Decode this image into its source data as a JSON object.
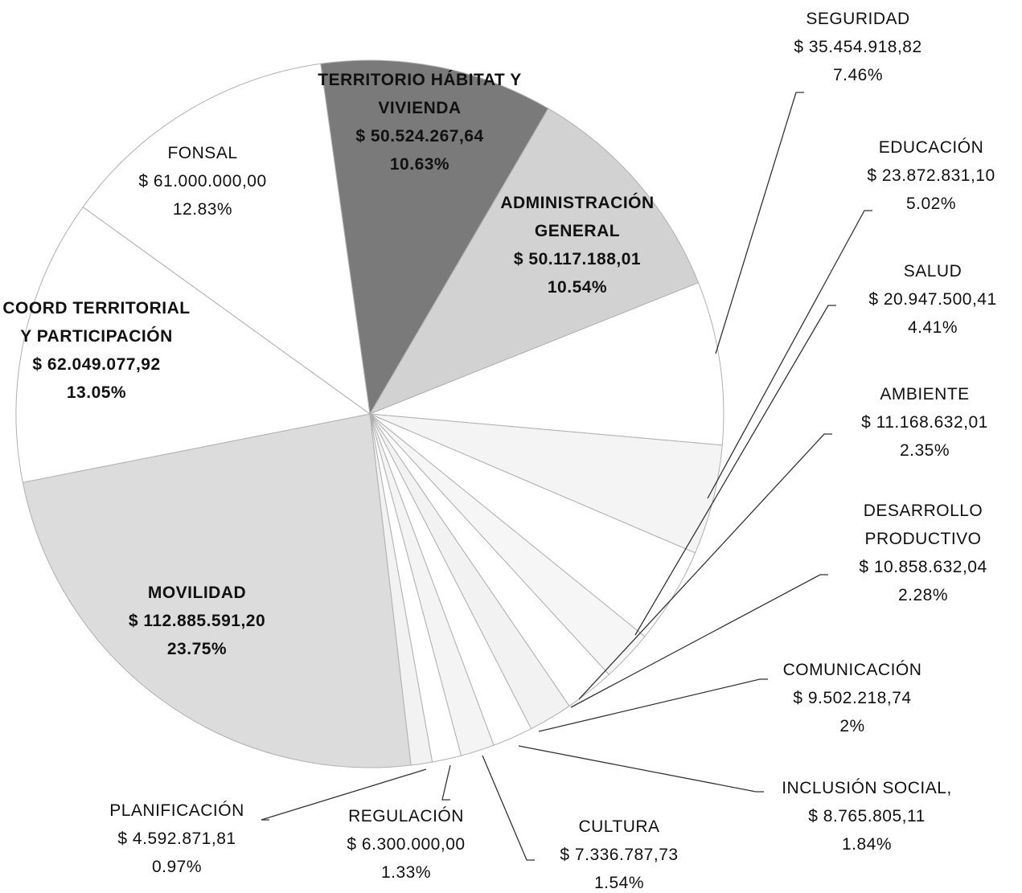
{
  "chart_data": {
    "type": "pie",
    "categories": [
      "TERRITORIO HÁBITAT Y VIVIENDA",
      "ADMINISTRACIÓN GENERAL",
      "SEGURIDAD",
      "EDUCACIÓN",
      "SALUD",
      "AMBIENTE",
      "DESARROLLO PRODUCTIVO",
      "COMUNICACIÓN",
      "INCLUSIÓN SOCIAL,",
      "CULTURA",
      "REGULACIÓN",
      "PLANIFICACIÓN",
      "MOVILIDAD",
      "COORD TERRITORIAL Y PARTICIPACIÓN",
      "FONSAL"
    ],
    "amount_labels": [
      "$ 50.524.267,64",
      "$ 50.117.188,01",
      "$ 35.454.918,82",
      "$ 23.872.831,10",
      "$ 20.947.500,41",
      "$ 11.168.632,01",
      "$ 10.858.632,04",
      "$ 9.502.218,74",
      "$ 8.765.805,11",
      "$ 7.336.787,73",
      "$ 6.300.000,00",
      "$ 4.592.871,81",
      "$ 112.885.591,20",
      "$ 62.049.077,92",
      "$ 61.000.000,00"
    ],
    "values": [
      10.63,
      10.54,
      7.46,
      5.02,
      4.41,
      2.35,
      2.28,
      2,
      1.84,
      1.54,
      1.33,
      0.97,
      23.75,
      13.05,
      12.83
    ],
    "value_labels": [
      "10.63%",
      "10.54%",
      "7.46%",
      "5.02%",
      "4.41%",
      "2.35%",
      "2.28%",
      "2%",
      "1.84%",
      "1.54%",
      "1.33%",
      "0.97%",
      "23.75%",
      "13.05%",
      "12.83%"
    ],
    "colors": [
      "#7a7a7a",
      "#d2d2d2",
      "#ffffff",
      "#f4f4f4",
      "#ffffff",
      "#f6f6f6",
      "#ffffff",
      "#f2f2f2",
      "#ffffff",
      "#f4f4f4",
      "#ffffff",
      "#f2f2f2",
      "#dcdcdc",
      "#ffffff",
      "#ffffff"
    ]
  }
}
